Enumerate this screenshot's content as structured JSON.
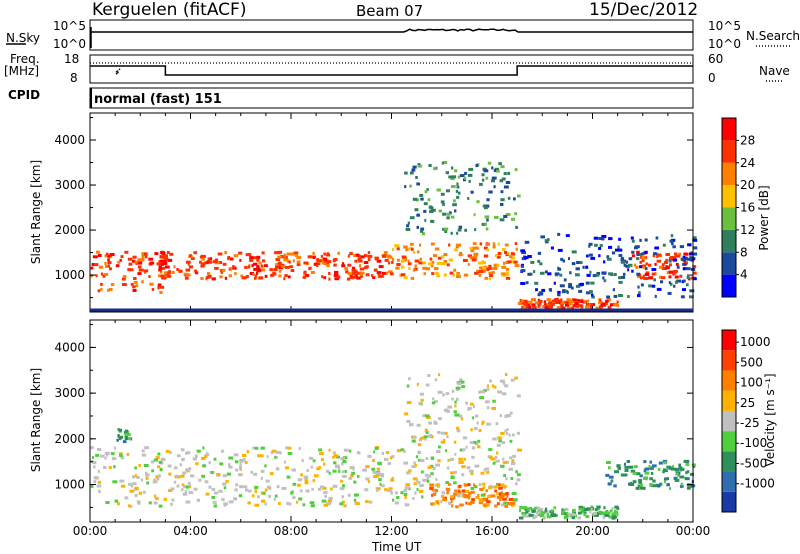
{
  "header": {
    "station": "Kerguelen (fitACF)",
    "beam": "Beam 07",
    "date": "15/Dec/2012"
  },
  "top_panels": {
    "nsky_label": "N.Sky",
    "nsky_ticks": [
      "10^5",
      "10^0"
    ],
    "nsearch_label": "N.Search",
    "nsearch_ticks": [
      "10^5",
      "10^0"
    ],
    "freq_label_1": "Freq.",
    "freq_label_2": "[MHz]",
    "freq_ticks": [
      "18",
      "8"
    ],
    "nave_label": "Nave",
    "nave_ticks": [
      "60",
      "0"
    ],
    "cpid_label": "CPID",
    "cpid_text": "normal (fast) 151"
  },
  "chart_data": [
    {
      "type": "heatmap",
      "name": "power",
      "ylabel": "Slant Range [km]",
      "yticks": [
        "4000",
        "3000",
        "2000",
        "1000"
      ],
      "ylim": [
        180,
        4600
      ],
      "xlim": [
        0,
        24
      ],
      "colorbar_label": "Power [dB]",
      "colorbar_ticks": [
        "28",
        "24",
        "20",
        "16",
        "12",
        "8",
        "4"
      ],
      "colors": [
        "#0000ff",
        "#1a4a9c",
        "#2f7f5c",
        "#6abf3c",
        "#ffc000",
        "#ff7f00",
        "#ff3000",
        "#ff0000"
      ],
      "bands": [
        {
          "t0": 0.0,
          "t1": 3.0,
          "r0": 600,
          "r1": 1500,
          "level": 6
        },
        {
          "t0": 2.7,
          "t1": 12.0,
          "r0": 900,
          "r1": 1500,
          "level": 6
        },
        {
          "t0": 12.0,
          "t1": 17.0,
          "r0": 900,
          "r1": 1700,
          "level": 5
        },
        {
          "t0": 21.5,
          "t1": 24.0,
          "r0": 900,
          "r1": 1500,
          "level": 6
        },
        {
          "t0": 17.0,
          "t1": 21.0,
          "r0": 250,
          "r1": 450,
          "level": 6
        },
        {
          "t0": 12.5,
          "t1": 17.0,
          "r0": 1900,
          "r1": 3500,
          "level": 2
        },
        {
          "t0": 17.0,
          "t1": 24.0,
          "r0": 500,
          "r1": 1900,
          "level": 1
        }
      ]
    },
    {
      "type": "heatmap",
      "name": "velocity",
      "ylabel": "Slant Range [km]",
      "yticks": [
        "4000",
        "3000",
        "2000",
        "1000"
      ],
      "ylim": [
        180,
        4600
      ],
      "xlim": [
        0,
        24
      ],
      "xlabel": "Time UT",
      "xticks": [
        "00:00",
        "04:00",
        "08:00",
        "12:00",
        "16:00",
        "20:00",
        "00:00"
      ],
      "colorbar_label": "Velocity [m s⁻¹]",
      "colorbar_ticks": [
        "1000",
        "500",
        "100",
        "25",
        "-25",
        "-100",
        "-500",
        "-1000"
      ],
      "colors": [
        "#1a3aa8",
        "#2f6fb0",
        "#2f8f5a",
        "#4fcf3c",
        "#c0c0c0",
        "#ffb000",
        "#ff7f00",
        "#ff4000",
        "#ff0000"
      ],
      "bands": [
        {
          "t0": 0.0,
          "t1": 17.0,
          "r0": 500,
          "r1": 1800,
          "level": 4
        },
        {
          "t0": 12.5,
          "t1": 17.0,
          "r0": 1800,
          "r1": 3400,
          "level": 4
        },
        {
          "t0": 13.5,
          "t1": 16.8,
          "r0": 500,
          "r1": 1000,
          "level": 6
        },
        {
          "t0": 20.5,
          "t1": 24.0,
          "r0": 900,
          "r1": 1500,
          "level": 2
        },
        {
          "t0": 1.0,
          "t1": 1.6,
          "r0": 1900,
          "r1": 2200,
          "level": 2
        },
        {
          "t0": 17.0,
          "t1": 21.0,
          "r0": 250,
          "r1": 500,
          "level": 3
        }
      ]
    }
  ]
}
